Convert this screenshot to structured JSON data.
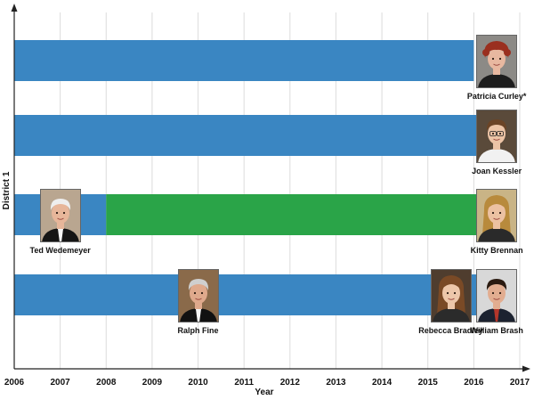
{
  "chart_data": {
    "type": "timeline",
    "xlabel": "Year",
    "ylabel": "District 1",
    "xlim": [
      2006,
      2017
    ],
    "x_ticks": [
      "2006",
      "2007",
      "2008",
      "2009",
      "2010",
      "2011",
      "2012",
      "2013",
      "2014",
      "2015",
      "2016",
      "2017"
    ],
    "grid": "vertical",
    "colors": {
      "blue": "#3a86c2",
      "green": "#2aa448"
    },
    "rows": [
      {
        "segments": [
          {
            "start": 2006,
            "end": 2016,
            "color": "blue"
          }
        ]
      },
      {
        "segments": [
          {
            "start": 2006,
            "end": 2016.1,
            "color": "blue"
          }
        ]
      },
      {
        "segments": [
          {
            "start": 2006,
            "end": 2008,
            "color": "blue"
          },
          {
            "start": 2008,
            "end": 2016.1,
            "color": "green"
          }
        ]
      },
      {
        "segments": [
          {
            "start": 2006,
            "end": 2016.1,
            "color": "blue"
          }
        ]
      }
    ],
    "judges": [
      {
        "name": "Patricia Curley*",
        "row": 0,
        "year": 2016.5,
        "portrait": "woman-red-hair"
      },
      {
        "name": "Joan Kessler",
        "row": 1,
        "year": 2016.5,
        "portrait": "woman-short-brown-hair-glasses"
      },
      {
        "name": "Ted Wedemeyer",
        "row": 2,
        "year": 2007.0,
        "portrait": "man-white-hair-robe"
      },
      {
        "name": "Kitty Brennan",
        "row": 2,
        "year": 2016.5,
        "portrait": "woman-blonde-hair"
      },
      {
        "name": "Ralph Fine",
        "row": 3,
        "year": 2010.0,
        "portrait": "man-gray-hair-robe"
      },
      {
        "name": "Rebecca Bradley",
        "row": 3,
        "year": 2015.5,
        "portrait": "woman-long-brown-hair"
      },
      {
        "name": "William Brash",
        "row": 3,
        "year": 2016.5,
        "portrait": "man-dark-hair-suit"
      }
    ]
  }
}
